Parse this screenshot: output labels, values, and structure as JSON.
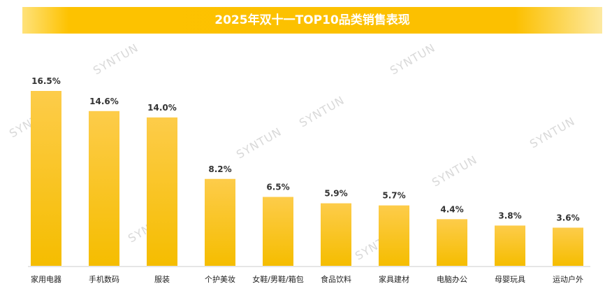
{
  "chart_data": {
    "type": "bar",
    "title": "2025年双十一TOP10品类销售表现",
    "categories": [
      "家用电器",
      "手机数码",
      "服装",
      "个护美妆",
      "女鞋/男鞋/箱包",
      "食品饮料",
      "家具建材",
      "电脑办公",
      "母婴玩具",
      "运动户外"
    ],
    "values": [
      16.5,
      14.6,
      14.0,
      8.2,
      6.5,
      5.9,
      5.7,
      4.4,
      3.8,
      3.6
    ],
    "data_labels": [
      "16.5%",
      "14.6%",
      "14.0%",
      "8.2%",
      "6.5%",
      "5.9%",
      "5.7%",
      "4.4%",
      "3.8%",
      "3.6%"
    ],
    "unit": "%",
    "ylim": [
      0,
      16.5
    ],
    "grid": false,
    "bar_color_top": "#fdcc4a",
    "bar_color_bottom": "#f5bd00"
  },
  "watermark": "SYNTUN"
}
